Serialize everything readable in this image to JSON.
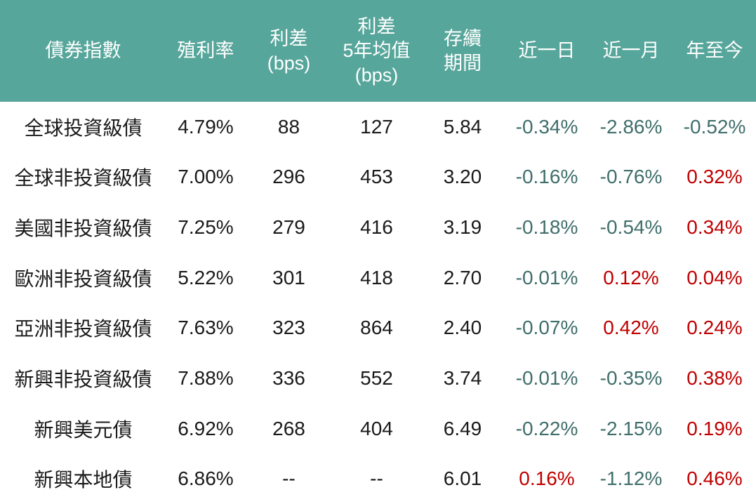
{
  "colors": {
    "header_bg": "#57a69b",
    "header_text": "#ffffff",
    "value_black": "#1a1a1a",
    "value_negative_teal": "#3f6e6b",
    "value_positive_red": "#c00000"
  },
  "chart_data": {
    "type": "table",
    "columns": [
      "債券指數",
      "殖利率",
      "利差\n(bps)",
      "利差\n5年均值\n(bps)",
      "存續\n期間",
      "近一日",
      "近一月",
      "年至今"
    ],
    "rows": [
      {
        "cells": [
          {
            "text": "全球投資級債",
            "color": "black"
          },
          {
            "text": "4.79%",
            "color": "black"
          },
          {
            "text": "88",
            "color": "black"
          },
          {
            "text": "127",
            "color": "black"
          },
          {
            "text": "5.84",
            "color": "black"
          },
          {
            "text": "-0.34%",
            "color": "teal"
          },
          {
            "text": "-2.86%",
            "color": "teal"
          },
          {
            "text": "-0.52%",
            "color": "teal"
          }
        ]
      },
      {
        "cells": [
          {
            "text": "全球非投資級債",
            "color": "black"
          },
          {
            "text": "7.00%",
            "color": "black"
          },
          {
            "text": "296",
            "color": "black"
          },
          {
            "text": "453",
            "color": "black"
          },
          {
            "text": "3.20",
            "color": "black"
          },
          {
            "text": "-0.16%",
            "color": "teal"
          },
          {
            "text": "-0.76%",
            "color": "teal"
          },
          {
            "text": "0.32%",
            "color": "red"
          }
        ]
      },
      {
        "cells": [
          {
            "text": "美國非投資級債",
            "color": "black"
          },
          {
            "text": "7.25%",
            "color": "black"
          },
          {
            "text": "279",
            "color": "black"
          },
          {
            "text": "416",
            "color": "black"
          },
          {
            "text": "3.19",
            "color": "black"
          },
          {
            "text": "-0.18%",
            "color": "teal"
          },
          {
            "text": "-0.54%",
            "color": "teal"
          },
          {
            "text": "0.34%",
            "color": "red"
          }
        ]
      },
      {
        "cells": [
          {
            "text": "歐洲非投資級債",
            "color": "black"
          },
          {
            "text": "5.22%",
            "color": "black"
          },
          {
            "text": "301",
            "color": "black"
          },
          {
            "text": "418",
            "color": "black"
          },
          {
            "text": "2.70",
            "color": "black"
          },
          {
            "text": "-0.01%",
            "color": "teal"
          },
          {
            "text": "0.12%",
            "color": "red"
          },
          {
            "text": "0.04%",
            "color": "red"
          }
        ]
      },
      {
        "cells": [
          {
            "text": "亞洲非投資級債",
            "color": "black"
          },
          {
            "text": "7.63%",
            "color": "black"
          },
          {
            "text": "323",
            "color": "black"
          },
          {
            "text": "864",
            "color": "black"
          },
          {
            "text": "2.40",
            "color": "black"
          },
          {
            "text": "-0.07%",
            "color": "teal"
          },
          {
            "text": "0.42%",
            "color": "red"
          },
          {
            "text": "0.24%",
            "color": "red"
          }
        ]
      },
      {
        "cells": [
          {
            "text": "新興非投資級債",
            "color": "black"
          },
          {
            "text": "7.88%",
            "color": "black"
          },
          {
            "text": "336",
            "color": "black"
          },
          {
            "text": "552",
            "color": "black"
          },
          {
            "text": "3.74",
            "color": "black"
          },
          {
            "text": "-0.01%",
            "color": "teal"
          },
          {
            "text": "-0.35%",
            "color": "teal"
          },
          {
            "text": "0.38%",
            "color": "red"
          }
        ]
      },
      {
        "cells": [
          {
            "text": "新興美元債",
            "color": "black"
          },
          {
            "text": "6.92%",
            "color": "black"
          },
          {
            "text": "268",
            "color": "black"
          },
          {
            "text": "404",
            "color": "black"
          },
          {
            "text": "6.49",
            "color": "black"
          },
          {
            "text": "-0.22%",
            "color": "teal"
          },
          {
            "text": "-2.15%",
            "color": "teal"
          },
          {
            "text": "0.19%",
            "color": "red"
          }
        ]
      },
      {
        "cells": [
          {
            "text": "新興本地債",
            "color": "black"
          },
          {
            "text": "6.86%",
            "color": "black"
          },
          {
            "text": "--",
            "color": "black"
          },
          {
            "text": "--",
            "color": "black"
          },
          {
            "text": "6.01",
            "color": "black"
          },
          {
            "text": "0.16%",
            "color": "red"
          },
          {
            "text": "-1.12%",
            "color": "teal"
          },
          {
            "text": "0.46%",
            "color": "red"
          }
        ]
      }
    ]
  }
}
